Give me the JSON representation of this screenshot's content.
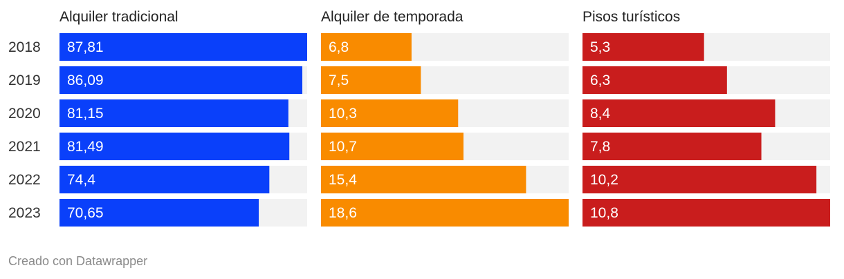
{
  "chart_data": {
    "type": "bar",
    "orientation": "horizontal",
    "categories": [
      "2018",
      "2019",
      "2020",
      "2021",
      "2022",
      "2023"
    ],
    "series": [
      {
        "name": "Alquiler tradicional",
        "color": "#0a40fa",
        "values": [
          87.81,
          86.09,
          81.15,
          81.49,
          74.4,
          70.65
        ],
        "labels": [
          "87,81",
          "86,09",
          "81,15",
          "81,49",
          "74,4",
          "70,65"
        ],
        "xlim": [
          0,
          87.81
        ]
      },
      {
        "name": "Alquiler de temporada",
        "color": "#f98b00",
        "values": [
          6.8,
          7.5,
          10.3,
          10.7,
          15.4,
          18.6
        ],
        "labels": [
          "6,8",
          "7,5",
          "10,3",
          "10,7",
          "15,4",
          "18,6"
        ],
        "xlim": [
          0,
          18.6
        ]
      },
      {
        "name": "Pisos turísticos",
        "color": "#c91d1d",
        "values": [
          5.3,
          6.3,
          8.4,
          7.8,
          10.2,
          10.8
        ],
        "labels": [
          "5,3",
          "6,3",
          "8,4",
          "7,8",
          "10,2",
          "10,8"
        ],
        "xlim": [
          0,
          10.8
        ]
      }
    ],
    "background_color": "#f2f2f2"
  },
  "footer": {
    "credit": "Creado con Datawrapper"
  }
}
